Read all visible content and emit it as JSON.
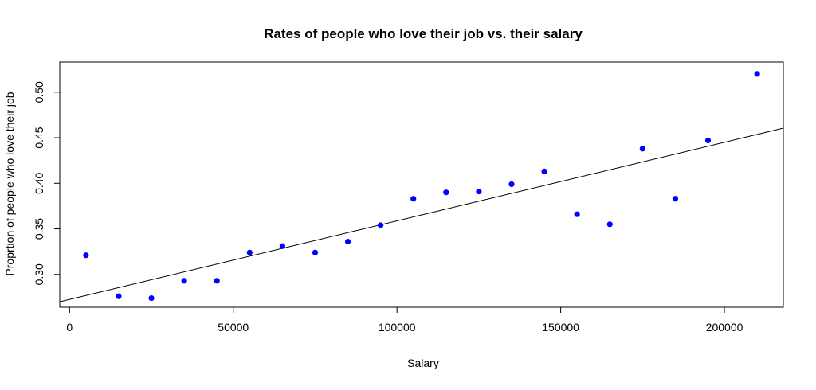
{
  "chart_data": {
    "type": "scatter",
    "title": "Rates of people who love their job vs. their salary",
    "xlabel": "Salary",
    "ylabel": "Proprtion of people who love their job",
    "xlim": [
      -3000,
      218000
    ],
    "ylim": [
      0.264,
      0.533
    ],
    "x_ticks": [
      0,
      50000,
      100000,
      150000,
      200000
    ],
    "x_tick_labels": [
      "0",
      "50000",
      "100000",
      "150000",
      "200000"
    ],
    "y_ticks": [
      0.3,
      0.35,
      0.4,
      0.45,
      0.5
    ],
    "y_tick_labels": [
      "0.30",
      "0.35",
      "0.40",
      "0.45",
      "0.50"
    ],
    "grid": false,
    "series": [
      {
        "x": [
          5000,
          15000,
          25000,
          35000,
          45000,
          55000,
          65000,
          75000,
          85000,
          95000,
          105000,
          115000,
          125000,
          135000,
          145000,
          155000,
          165000,
          175000,
          185000,
          195000,
          210000
        ],
        "y": [
          0.321,
          0.276,
          0.274,
          0.293,
          0.293,
          0.324,
          0.331,
          0.324,
          0.336,
          0.354,
          0.383,
          0.39,
          0.391,
          0.399,
          0.413,
          0.366,
          0.355,
          0.438,
          0.383,
          0.447,
          0.52
        ],
        "color": "#0000ff"
      }
    ],
    "fit_line": {
      "type": "linear",
      "color": "#000000",
      "points": [
        [
          -3000,
          0.27
        ],
        [
          218000,
          0.4605
        ]
      ]
    }
  }
}
